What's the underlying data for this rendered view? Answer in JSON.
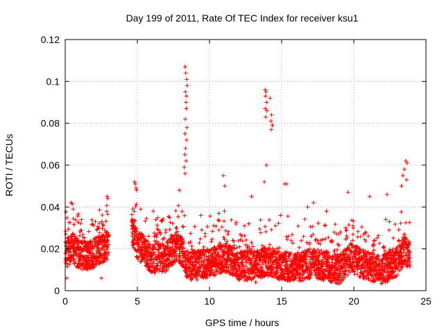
{
  "chart_data": {
    "type": "scatter",
    "title": "Day 199 of 2011, Rate Of TEC Index for receiver ksu1",
    "xlabel": "GPS time / hours",
    "ylabel": "ROTI / TECUs",
    "xlim": [
      0,
      25
    ],
    "ylim": [
      0,
      0.12
    ],
    "xticks": [
      0,
      5,
      10,
      15,
      20,
      25
    ],
    "yticks": [
      0,
      0.02,
      0.04,
      0.06,
      0.08,
      0.1,
      0.12
    ],
    "xtick_labels": [
      "0",
      "5",
      "10",
      "15",
      "20",
      "25"
    ],
    "ytick_labels": [
      "0",
      "0.02",
      "0.04",
      "0.06",
      "0.08",
      "0.1",
      "0.12"
    ],
    "grid": true,
    "marker": "+",
    "color": "#ff0000",
    "series_name": "ROTI",
    "gap": [
      3.0,
      4.6
    ],
    "x_start": 0.0,
    "x_end": 23.9,
    "x_step": 0.01,
    "baseline": [
      [
        0.0,
        0.018
      ],
      [
        0.5,
        0.02
      ],
      [
        1.0,
        0.017
      ],
      [
        1.5,
        0.017
      ],
      [
        2.0,
        0.018
      ],
      [
        2.5,
        0.02
      ],
      [
        3.0,
        0.022
      ],
      [
        4.6,
        0.03
      ],
      [
        5.0,
        0.022
      ],
      [
        6.0,
        0.015
      ],
      [
        7.0,
        0.016
      ],
      [
        7.5,
        0.02
      ],
      [
        8.0,
        0.02
      ],
      [
        8.5,
        0.012
      ],
      [
        9.0,
        0.012
      ],
      [
        10.0,
        0.013
      ],
      [
        11.0,
        0.016
      ],
      [
        12.0,
        0.012
      ],
      [
        13.0,
        0.012
      ],
      [
        14.0,
        0.014
      ],
      [
        15.0,
        0.012
      ],
      [
        16.0,
        0.011
      ],
      [
        17.0,
        0.013
      ],
      [
        18.0,
        0.012
      ],
      [
        19.0,
        0.01
      ],
      [
        19.8,
        0.016
      ],
      [
        20.5,
        0.013
      ],
      [
        21.0,
        0.012
      ],
      [
        22.0,
        0.01
      ],
      [
        23.0,
        0.014
      ],
      [
        23.5,
        0.02
      ],
      [
        23.9,
        0.016
      ]
    ],
    "highlights": [
      {
        "x": 8.3,
        "y": 0.107
      },
      {
        "x": 8.35,
        "y": 0.104
      },
      {
        "x": 8.42,
        "y": 0.101
      },
      {
        "x": 8.45,
        "y": 0.098
      },
      {
        "x": 8.33,
        "y": 0.095
      },
      {
        "x": 8.4,
        "y": 0.093
      },
      {
        "x": 8.36,
        "y": 0.09
      },
      {
        "x": 8.38,
        "y": 0.087
      },
      {
        "x": 8.32,
        "y": 0.082
      },
      {
        "x": 8.44,
        "y": 0.078
      },
      {
        "x": 8.3,
        "y": 0.075
      },
      {
        "x": 8.41,
        "y": 0.072
      },
      {
        "x": 8.34,
        "y": 0.068
      },
      {
        "x": 8.28,
        "y": 0.065
      },
      {
        "x": 8.37,
        "y": 0.062
      },
      {
        "x": 8.25,
        "y": 0.059
      },
      {
        "x": 8.31,
        "y": 0.056
      },
      {
        "x": 13.85,
        "y": 0.096
      },
      {
        "x": 13.92,
        "y": 0.095
      },
      {
        "x": 13.88,
        "y": 0.093
      },
      {
        "x": 14.2,
        "y": 0.092
      },
      {
        "x": 13.95,
        "y": 0.09
      },
      {
        "x": 13.86,
        "y": 0.087
      },
      {
        "x": 13.98,
        "y": 0.086
      },
      {
        "x": 14.3,
        "y": 0.084
      },
      {
        "x": 13.9,
        "y": 0.083
      },
      {
        "x": 14.25,
        "y": 0.081
      },
      {
        "x": 14.35,
        "y": 0.079
      },
      {
        "x": 14.28,
        "y": 0.077
      },
      {
        "x": 13.94,
        "y": 0.06
      },
      {
        "x": 13.8,
        "y": 0.052
      },
      {
        "x": 4.8,
        "y": 0.052
      },
      {
        "x": 4.85,
        "y": 0.051
      },
      {
        "x": 4.9,
        "y": 0.049
      },
      {
        "x": 4.95,
        "y": 0.048
      },
      {
        "x": 2.9,
        "y": 0.045
      },
      {
        "x": 2.95,
        "y": 0.044
      },
      {
        "x": 0.4,
        "y": 0.042
      },
      {
        "x": 0.55,
        "y": 0.039
      },
      {
        "x": 15.2,
        "y": 0.051
      },
      {
        "x": 15.35,
        "y": 0.051
      },
      {
        "x": 10.95,
        "y": 0.055
      },
      {
        "x": 11.05,
        "y": 0.05
      },
      {
        "x": 12.9,
        "y": 0.045
      },
      {
        "x": 19.6,
        "y": 0.047
      },
      {
        "x": 21.1,
        "y": 0.045
      },
      {
        "x": 22.3,
        "y": 0.046
      },
      {
        "x": 23.6,
        "y": 0.062
      },
      {
        "x": 23.7,
        "y": 0.061
      },
      {
        "x": 23.5,
        "y": 0.058
      },
      {
        "x": 23.4,
        "y": 0.055
      },
      {
        "x": 23.65,
        "y": 0.053
      },
      {
        "x": 23.3,
        "y": 0.05
      },
      {
        "x": 7.9,
        "y": 0.048
      },
      {
        "x": 16.8,
        "y": 0.04
      },
      {
        "x": 17.2,
        "y": 0.042
      },
      {
        "x": 18.1,
        "y": 0.038
      },
      {
        "x": 9.4,
        "y": 0.036
      },
      {
        "x": 6.1,
        "y": 0.038
      },
      {
        "x": 2.5,
        "y": 0.006
      },
      {
        "x": 0.1,
        "y": 0.006
      },
      {
        "x": 13.2,
        "y": 0.004
      },
      {
        "x": 15.4,
        "y": 0.005
      }
    ]
  }
}
